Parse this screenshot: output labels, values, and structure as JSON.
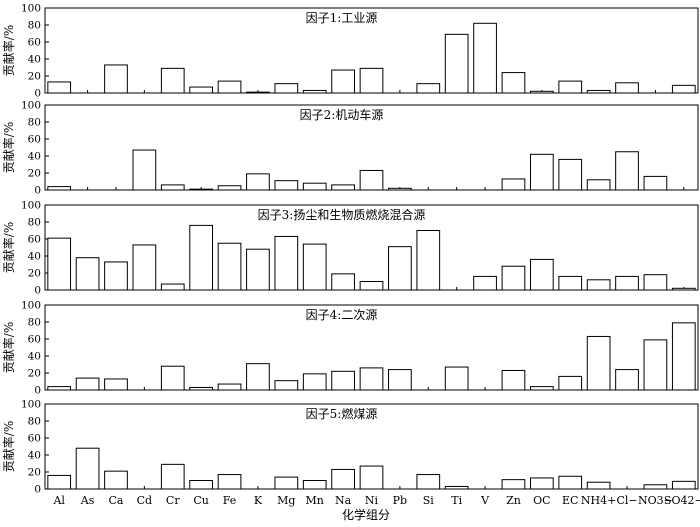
{
  "chart_data": {
    "type": "bar",
    "categories": [
      "Al",
      "As",
      "Ca",
      "Cd",
      "Cr",
      "Cu",
      "Fe",
      "K",
      "Mg",
      "Mn",
      "Na",
      "Ni",
      "Pb",
      "Si",
      "Ti",
      "V",
      "Zn",
      "OC",
      "EC",
      "NH4+",
      "Cl−",
      "NO3−",
      "SO42−"
    ],
    "xlabel": "化学组分",
    "ylabel": "贡献率/%",
    "ylim": [
      0,
      100
    ],
    "yticks": [
      0,
      20,
      40,
      60,
      80,
      100
    ],
    "grid": false,
    "series": [
      {
        "name": "因子1:工业源",
        "values": [
          13,
          0,
          33,
          0,
          29,
          7,
          14,
          1,
          11,
          3,
          27,
          29,
          0,
          11,
          69,
          82,
          24,
          2,
          14,
          3,
          12,
          0,
          9
        ]
      },
      {
        "name": "因子2:机动车源",
        "values": [
          4,
          0,
          0,
          47,
          6,
          1,
          5,
          19,
          11,
          8,
          6,
          23,
          2,
          0,
          0,
          0,
          13,
          42,
          36,
          12,
          45,
          16,
          0
        ]
      },
      {
        "name": "因子3:扬尘和生物质燃烧混合源",
        "values": [
          61,
          38,
          33,
          53,
          7,
          76,
          55,
          48,
          63,
          54,
          19,
          10,
          51,
          70,
          0,
          16,
          28,
          36,
          16,
          12,
          16,
          18,
          2
        ]
      },
      {
        "name": "因子4:二次源",
        "values": [
          4,
          14,
          13,
          0,
          28,
          3,
          7,
          31,
          11,
          19,
          22,
          26,
          24,
          0,
          27,
          0,
          23,
          4,
          16,
          63,
          24,
          59,
          79
        ]
      },
      {
        "name": "因子5:燃煤源",
        "values": [
          16,
          48,
          21,
          0,
          29,
          10,
          17,
          0,
          14,
          10,
          23,
          27,
          0,
          17,
          3,
          0,
          11,
          13,
          15,
          8,
          0,
          5,
          9
        ]
      }
    ]
  }
}
